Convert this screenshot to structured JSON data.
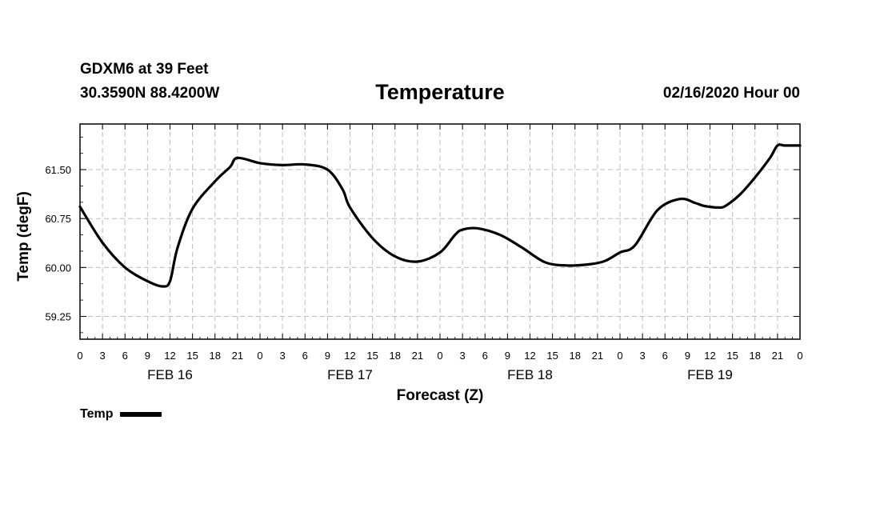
{
  "header": {
    "station": "GDXM6 at 39 Feet",
    "coords": "30.3590N 88.4200W",
    "title": "Temperature",
    "datetime": "02/16/2020 Hour 00"
  },
  "chart_data": {
    "type": "line",
    "title": "Temperature",
    "xlabel": "Forecast (Z)",
    "ylabel": "Temp (degF)",
    "x_unit": "forecast hour",
    "xlim": [
      0,
      96
    ],
    "ylim": [
      58.9,
      62.2
    ],
    "y_ticks": [
      "59.25",
      "60.00",
      "60.75",
      "61.50"
    ],
    "x_tick_labels": [
      "0",
      "3",
      "6",
      "9",
      "12",
      "15",
      "18",
      "21",
      "0",
      "3",
      "6",
      "9",
      "12",
      "15",
      "18",
      "21",
      "0",
      "3",
      "6",
      "9",
      "12",
      "15",
      "18",
      "21",
      "0",
      "3",
      "6",
      "9",
      "12",
      "15",
      "18",
      "21",
      "0"
    ],
    "date_labels": [
      {
        "label": "FEB 16",
        "hour": 12
      },
      {
        "label": "FEB 17",
        "hour": 36
      },
      {
        "label": "FEB 18",
        "hour": 60
      },
      {
        "label": "FEB 19",
        "hour": 84
      }
    ],
    "grid": true,
    "legend_position": "bottom-left",
    "series": [
      {
        "name": "Temp",
        "color": "#000000",
        "x": [
          0,
          3,
          6,
          9,
          11,
          12,
          13,
          15,
          18,
          20,
          21,
          24,
          27,
          30,
          33,
          35,
          36,
          39,
          42,
          45,
          48,
          50,
          51,
          53,
          56,
          59,
          62,
          65,
          68,
          70,
          72,
          74,
          77,
          80,
          82,
          83,
          84,
          85,
          86,
          88,
          90,
          92,
          93,
          94,
          96
        ],
        "y": [
          60.93,
          60.38,
          60.0,
          59.79,
          59.71,
          59.79,
          60.3,
          60.9,
          61.32,
          61.54,
          61.68,
          61.6,
          61.57,
          61.58,
          61.5,
          61.2,
          60.92,
          60.45,
          60.17,
          60.09,
          60.23,
          60.5,
          60.58,
          60.6,
          60.5,
          60.3,
          60.08,
          60.03,
          60.05,
          60.1,
          60.23,
          60.34,
          60.88,
          61.05,
          60.99,
          60.95,
          60.93,
          60.92,
          60.94,
          61.12,
          61.38,
          61.68,
          61.87,
          61.87,
          61.87
        ]
      }
    ]
  },
  "legend": {
    "label": "Temp"
  }
}
